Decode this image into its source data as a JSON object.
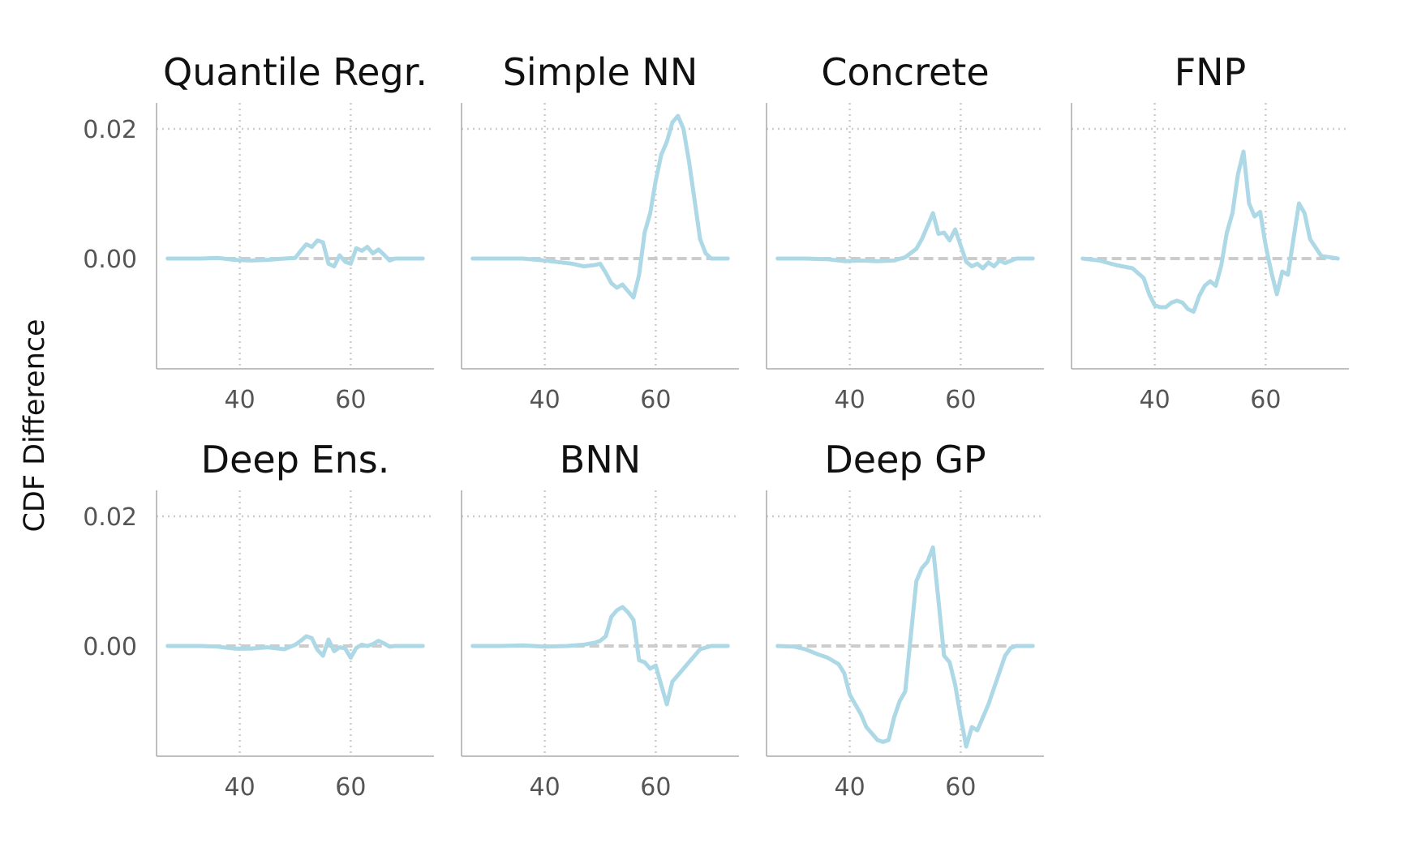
{
  "figure": {
    "ylabel": "CDF Difference",
    "colors": {
      "line": "#add8e6",
      "zero_line": "#cccccc",
      "grid": "#cccccc",
      "spine": "#aaaaaa",
      "tick_text": "#555555"
    },
    "shared_axes": {
      "xticks": [
        40,
        60
      ],
      "xtick_labels": [
        "40",
        "60"
      ],
      "yticks": [
        0.0,
        0.02
      ],
      "ytick_labels": [
        "0.00",
        "0.02"
      ],
      "xlim": [
        25,
        75
      ],
      "ylim": [
        -0.017,
        0.024
      ],
      "grid": "dotted",
      "zero_line": "dashed"
    }
  },
  "chart_data": [
    {
      "type": "line",
      "title": "Quantile Regr.",
      "x": [
        27,
        30,
        33,
        36,
        39,
        42,
        45,
        48,
        50,
        51,
        52,
        53,
        54,
        55,
        56,
        57,
        58,
        59,
        60,
        61,
        62,
        63,
        64,
        65,
        66,
        67,
        68,
        70,
        73
      ],
      "y": [
        0,
        0,
        0,
        0.0001,
        -0.0002,
        -0.0003,
        -0.0002,
        0,
        0.0001,
        0.0012,
        0.0022,
        0.0018,
        0.0028,
        0.0025,
        -0.0008,
        -0.0012,
        0.0005,
        -0.0005,
        -0.0008,
        0.0016,
        0.0012,
        0.0018,
        0.0008,
        0.0014,
        0.0006,
        -0.0003,
        0,
        0,
        0
      ]
    },
    {
      "type": "line",
      "title": "Simple NN",
      "x": [
        27,
        32,
        36,
        40,
        43,
        45,
        47,
        49,
        50,
        51,
        52,
        53,
        54,
        55,
        56,
        57,
        58,
        59,
        60,
        61,
        62,
        63,
        64,
        65,
        66,
        67,
        68,
        69,
        70,
        73
      ],
      "y": [
        0,
        0,
        0,
        -0.0003,
        -0.0006,
        -0.0008,
        -0.0012,
        -0.001,
        -0.0008,
        -0.0022,
        -0.0038,
        -0.0045,
        -0.004,
        -0.005,
        -0.006,
        -0.0025,
        0.004,
        0.007,
        0.012,
        0.016,
        0.018,
        0.021,
        0.022,
        0.02,
        0.015,
        0.009,
        0.003,
        0.0008,
        0,
        0
      ]
    },
    {
      "type": "line",
      "title": "Concrete",
      "x": [
        27,
        32,
        36,
        39,
        42,
        45,
        48,
        50,
        52,
        53,
        54,
        55,
        56,
        57,
        58,
        59,
        60,
        61,
        62,
        63,
        64,
        65,
        66,
        67,
        68,
        70,
        73
      ],
      "y": [
        0,
        0,
        -0.0001,
        -0.0004,
        -0.0003,
        -0.0004,
        -0.0003,
        0.0002,
        0.0015,
        0.003,
        0.005,
        0.007,
        0.0038,
        0.004,
        0.0028,
        0.0045,
        0.002,
        -0.0005,
        -0.0012,
        -0.0008,
        -0.0015,
        -0.0006,
        -0.0012,
        -0.0003,
        -0.0007,
        0,
        0
      ]
    },
    {
      "type": "line",
      "title": "FNP",
      "x": [
        27,
        30,
        33,
        36,
        38,
        39,
        40,
        41,
        42,
        43,
        44,
        45,
        46,
        47,
        48,
        49,
        50,
        51,
        52,
        53,
        54,
        55,
        56,
        57,
        58,
        59,
        60,
        61,
        62,
        63,
        64,
        65,
        66,
        67,
        68,
        70,
        73
      ],
      "y": [
        0,
        -0.0003,
        -0.001,
        -0.0015,
        -0.003,
        -0.0055,
        -0.0072,
        -0.0075,
        -0.0075,
        -0.0068,
        -0.0065,
        -0.0068,
        -0.0078,
        -0.0082,
        -0.0058,
        -0.0042,
        -0.0035,
        -0.0042,
        -0.001,
        0.004,
        0.007,
        0.013,
        0.0165,
        0.0085,
        0.0065,
        0.0072,
        0.002,
        -0.002,
        -0.0055,
        -0.002,
        -0.0025,
        0.003,
        0.0085,
        0.007,
        0.003,
        0.0004,
        0
      ]
    },
    {
      "type": "line",
      "title": "Deep Ens.",
      "x": [
        27,
        30,
        33,
        36,
        39,
        42,
        45,
        48,
        50,
        51,
        52,
        53,
        54,
        55,
        56,
        57,
        58,
        59,
        60,
        61,
        62,
        63,
        64,
        65,
        66,
        67,
        68,
        70,
        73
      ],
      "y": [
        0,
        0,
        0,
        -0.0001,
        -0.0004,
        -0.0004,
        -0.0002,
        -0.0005,
        0.0002,
        0.0008,
        0.0015,
        0.0012,
        -0.0006,
        -0.0015,
        0.001,
        -0.0008,
        -0.0002,
        -0.0004,
        -0.0018,
        -0.0003,
        0.0002,
        0,
        0.0003,
        0.0008,
        0.0004,
        -0.0001,
        0,
        0,
        0
      ]
    },
    {
      "type": "line",
      "title": "BNN",
      "x": [
        27,
        32,
        36,
        40,
        44,
        47,
        49,
        50,
        51,
        52,
        53,
        54,
        55,
        56,
        57,
        58,
        59,
        60,
        61,
        62,
        63,
        64,
        65,
        66,
        67,
        68,
        70,
        73
      ],
      "y": [
        0,
        0,
        0.0001,
        -0.0001,
        0,
        0.0002,
        0.0005,
        0.0008,
        0.0015,
        0.0045,
        0.0055,
        0.006,
        0.0052,
        0.004,
        -0.0022,
        -0.0025,
        -0.0035,
        -0.003,
        -0.006,
        -0.009,
        -0.0055,
        -0.0045,
        -0.0035,
        -0.0025,
        -0.0015,
        -0.0005,
        0,
        0
      ]
    },
    {
      "type": "line",
      "title": "Deep GP",
      "x": [
        27,
        30,
        32,
        34,
        36,
        38,
        39,
        40,
        41,
        42,
        43,
        44,
        45,
        46,
        47,
        48,
        49,
        50,
        51,
        52,
        53,
        54,
        55,
        56,
        57,
        58,
        59,
        60,
        61,
        62,
        63,
        64,
        65,
        66,
        67,
        68,
        69,
        70,
        73
      ],
      "y": [
        0,
        -0.0001,
        -0.0005,
        -0.0012,
        -0.0018,
        -0.0028,
        -0.0042,
        -0.0075,
        -0.009,
        -0.0105,
        -0.0125,
        -0.0135,
        -0.0145,
        -0.0148,
        -0.0145,
        -0.011,
        -0.0085,
        -0.007,
        0.0015,
        0.01,
        0.012,
        0.013,
        0.0152,
        0.007,
        -0.0015,
        -0.0025,
        -0.006,
        -0.011,
        -0.0155,
        -0.0125,
        -0.013,
        -0.011,
        -0.009,
        -0.0065,
        -0.004,
        -0.0015,
        -0.0003,
        0,
        0
      ]
    }
  ]
}
